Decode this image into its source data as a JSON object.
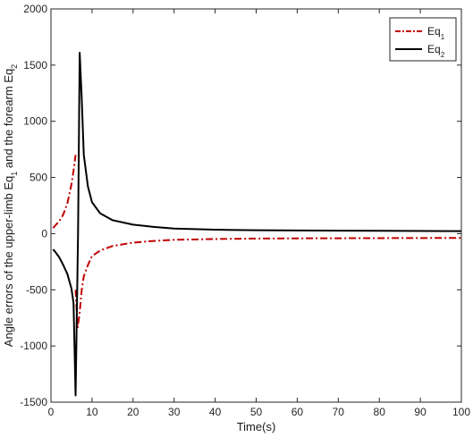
{
  "chart_data": {
    "type": "line",
    "title": "",
    "xlabel": "Time(s)",
    "ylabel": {
      "prefix": "Angle errors of the upper-limb Eq",
      "sub1": "1",
      "middle": " and the forearm Eq",
      "sub2": "2"
    },
    "xlim": [
      0,
      100
    ],
    "ylim": [
      -1500,
      2000
    ],
    "xticks": [
      0,
      10,
      20,
      30,
      40,
      50,
      60,
      70,
      80,
      90,
      100
    ],
    "yticks": [
      -1500,
      -1000,
      -500,
      0,
      500,
      1000,
      1500,
      2000
    ],
    "grid": false,
    "legend_position": "top-right",
    "series": [
      {
        "name_base": "Eq",
        "name_sub": "1",
        "color": "#c00000",
        "style": "dash-dot",
        "branches": [
          {
            "x": [
              0.5,
              1,
              2,
              3,
              4,
              5,
              5.5,
              6.0
            ],
            "y": [
              50,
              70,
              110,
              170,
              270,
              440,
              560,
              700
            ]
          },
          {
            "x": [
              6.0,
              6.5,
              7,
              7.5,
              8,
              9,
              10,
              12,
              15,
              20,
              25,
              30,
              40,
              50,
              60,
              80,
              100
            ],
            "y": [
              -500,
              -840,
              -700,
              -500,
              -380,
              -280,
              -200,
              -150,
              -110,
              -80,
              -65,
              -55,
              -48,
              -44,
              -42,
              -40,
              -38
            ]
          }
        ]
      },
      {
        "name_base": "Eq",
        "name_sub": "2",
        "color": "#000000",
        "style": "solid",
        "branches": [
          {
            "x": [
              0.5,
              1,
              2,
              3,
              4,
              5,
              5.5,
              6.0,
              6.6,
              7.0,
              7.5,
              8,
              9,
              10,
              12,
              15,
              20,
              25,
              30,
              40,
              50,
              60,
              80,
              100
            ],
            "y": [
              -140,
              -160,
              -210,
              -280,
              -360,
              -490,
              -620,
              -1440,
              0,
              1610,
              1200,
              700,
              420,
              280,
              180,
              120,
              80,
              60,
              45,
              35,
              30,
              28,
              25,
              22
            ]
          }
        ]
      }
    ]
  }
}
